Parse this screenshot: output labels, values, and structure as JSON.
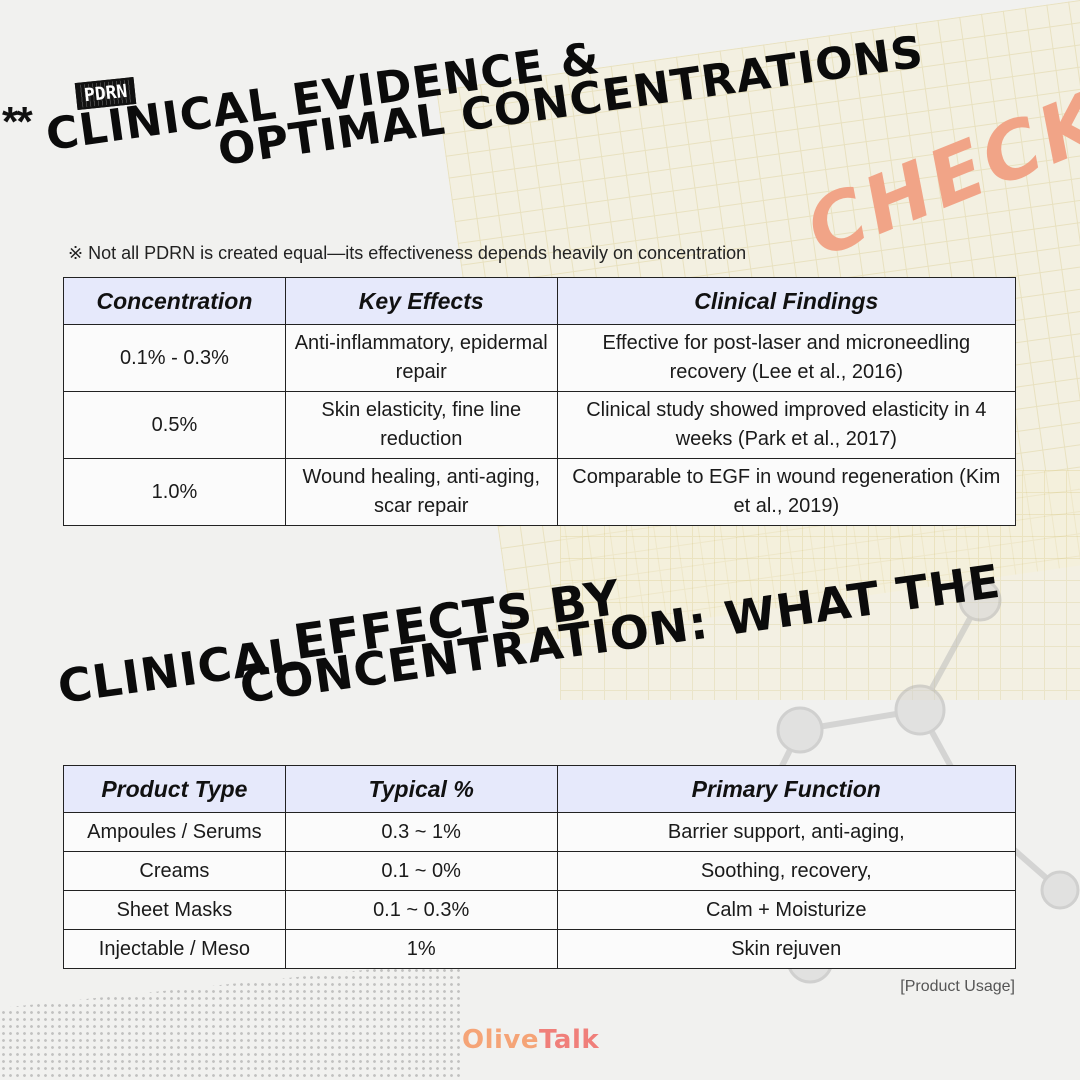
{
  "header": {
    "stars": "**",
    "badge": "PDRN",
    "title_line1": "Clinical evidence &",
    "title_line2": "optimal concentrations",
    "accent_word": "CHECK"
  },
  "note": "※ Not all PDRN is created equal—its effectiveness depends heavily on concentration",
  "table1": {
    "headers": [
      "Concentration",
      "Key Effects",
      "Clinical Findings"
    ],
    "rows": [
      [
        "0.1% - 0.3%",
        "Anti-inflammatory, epidermal repair",
        "Effective for post-laser and microneedling recovery (Lee et al., 2016)"
      ],
      [
        "0.5%",
        "Skin elasticity, fine line reduction",
        "Clinical study showed improved elasticity in 4 weeks (Park et al., 2017)"
      ],
      [
        "1.0%",
        "Wound healing, anti-aging, scar repair",
        "Comparable to EGF in wound regeneration (Kim et al., 2019)"
      ]
    ]
  },
  "section2": {
    "title_part1": "Clinical",
    "title_part2": "Effects by",
    "title_part3": "Concentration: What the"
  },
  "table2": {
    "headers": [
      "Product Type",
      "Typical %",
      "Primary Function"
    ],
    "rows": [
      [
        "Ampoules / Serums",
        "0.3 ~ 1%",
        "Barrier support, anti-aging,"
      ],
      [
        "Creams",
        "0.1 ~ 0%",
        "Soothing, recovery,"
      ],
      [
        "Sheet Masks",
        "0.1 ~ 0.3%",
        "Calm + Moisturize"
      ],
      [
        "Injectable / Meso",
        "1%",
        "Skin rejuven"
      ]
    ]
  },
  "caption": "[Product Usage]",
  "logo": {
    "part1": "Olive",
    "part2": "Talk"
  },
  "colors": {
    "accent": "#f1a487",
    "header_bg": "#e6e9fb",
    "logo": "#f5a477"
  }
}
